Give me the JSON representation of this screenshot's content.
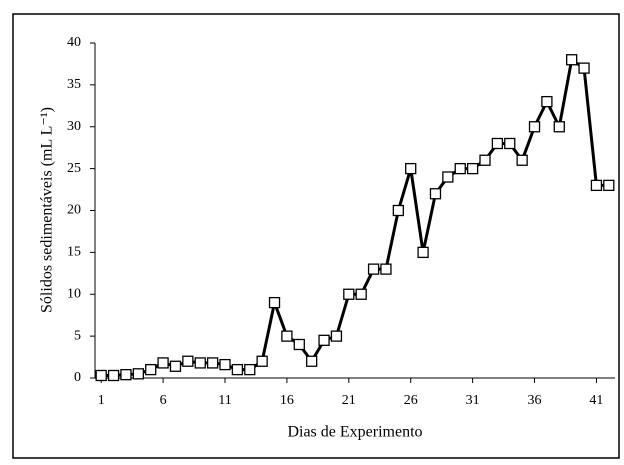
{
  "chart_data": {
    "type": "line",
    "xlabel": "Dias de Experimento",
    "ylabel": "Sólidos sedimentáveis (mL L⁻¹)",
    "x": [
      1,
      2,
      3,
      4,
      5,
      6,
      7,
      8,
      9,
      10,
      11,
      12,
      13,
      14,
      15,
      16,
      17,
      18,
      19,
      20,
      21,
      22,
      23,
      24,
      25,
      26,
      27,
      28,
      29,
      30,
      31,
      32,
      33,
      34,
      35,
      36,
      37,
      38,
      39,
      40,
      41,
      42
    ],
    "series": [
      {
        "color": "#000000",
        "values": [
          0.3,
          0.3,
          0.4,
          0.5,
          1,
          1.8,
          1.4,
          2,
          1.8,
          1.8,
          1.6,
          1,
          1,
          2,
          9,
          5,
          4,
          2,
          4.5,
          5,
          10,
          10,
          13,
          13,
          20,
          25,
          15,
          22,
          24,
          25,
          25,
          26,
          28,
          28,
          26,
          30,
          33,
          30,
          38,
          37,
          23,
          23
        ]
      }
    ],
    "xlim": [
      0.5,
      42.5
    ],
    "xticks": [
      1,
      6,
      11,
      16,
      21,
      26,
      31,
      36,
      41
    ],
    "ylim": [
      0,
      40
    ],
    "yticks": [
      0,
      5,
      10,
      15,
      20,
      25,
      30,
      35,
      40
    ]
  }
}
